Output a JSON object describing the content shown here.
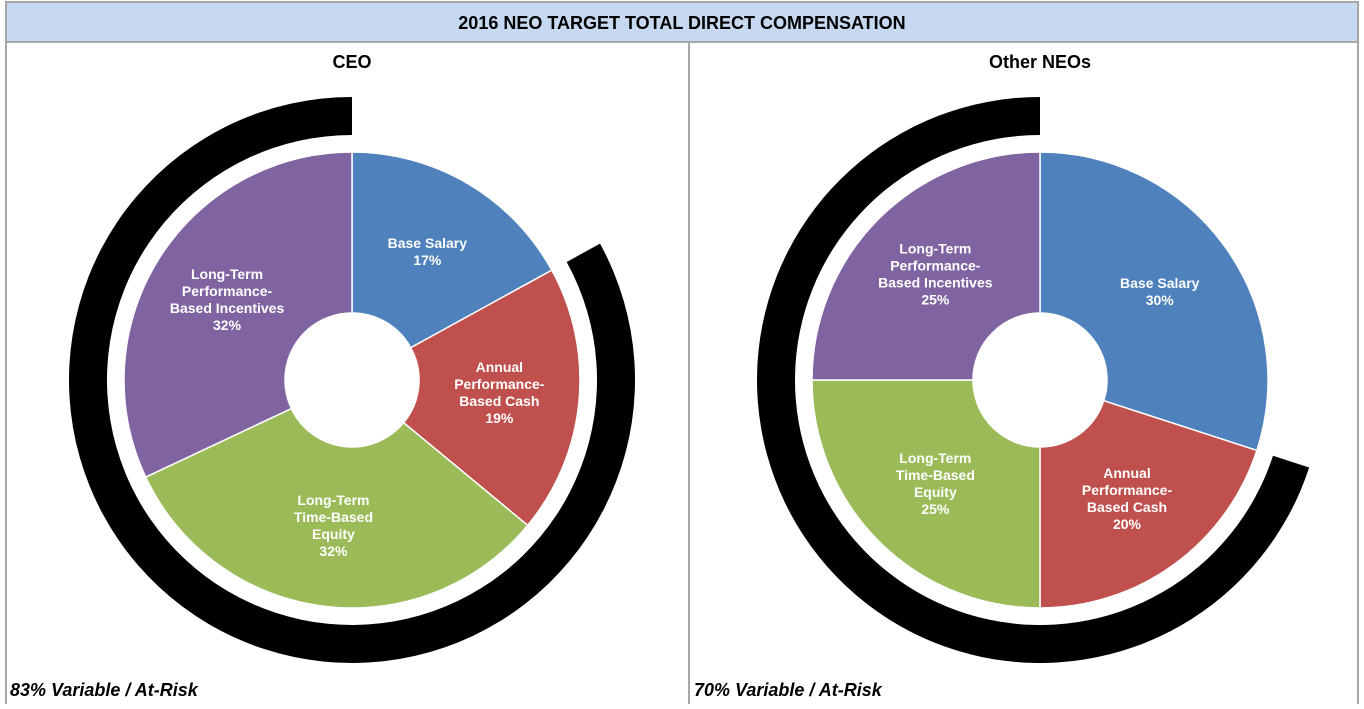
{
  "title": "2016 NEO TARGET TOTAL DIRECT COMPENSATION",
  "chart_data": [
    {
      "type": "donut",
      "title": "CEO",
      "categories": [
        [
          "Base Salary"
        ],
        [
          "Annual",
          "Performance-",
          "Based Cash"
        ],
        [
          "Long-Term",
          "Time-Based",
          "Equity"
        ],
        [
          "Long-Term",
          "Performance-",
          "Based Incentives"
        ]
      ],
      "values": [
        17,
        19,
        32,
        32
      ],
      "value_labels": [
        "17%",
        "19%",
        "32%",
        "32%"
      ],
      "colors": [
        "#4f81bd",
        "#c0504d",
        "#9bbb59",
        "#8064a2"
      ],
      "annotation": "83% Variable / At-Risk"
    },
    {
      "type": "donut",
      "title": "Other NEOs",
      "categories": [
        [
          "Base Salary"
        ],
        [
          "Annual",
          "Performance-",
          "Based Cash"
        ],
        [
          "Long-Term",
          "Time-Based",
          "Equity"
        ],
        [
          "Long-Term",
          "Performance-",
          "Based Incentives"
        ]
      ],
      "values": [
        30,
        20,
        25,
        25
      ],
      "value_labels": [
        "30%",
        "20%",
        "25%",
        "25%"
      ],
      "colors": [
        "#4f81bd",
        "#c0504d",
        "#9bbb59",
        "#8064a2"
      ],
      "annotation": "70% Variable / At-Risk"
    }
  ]
}
